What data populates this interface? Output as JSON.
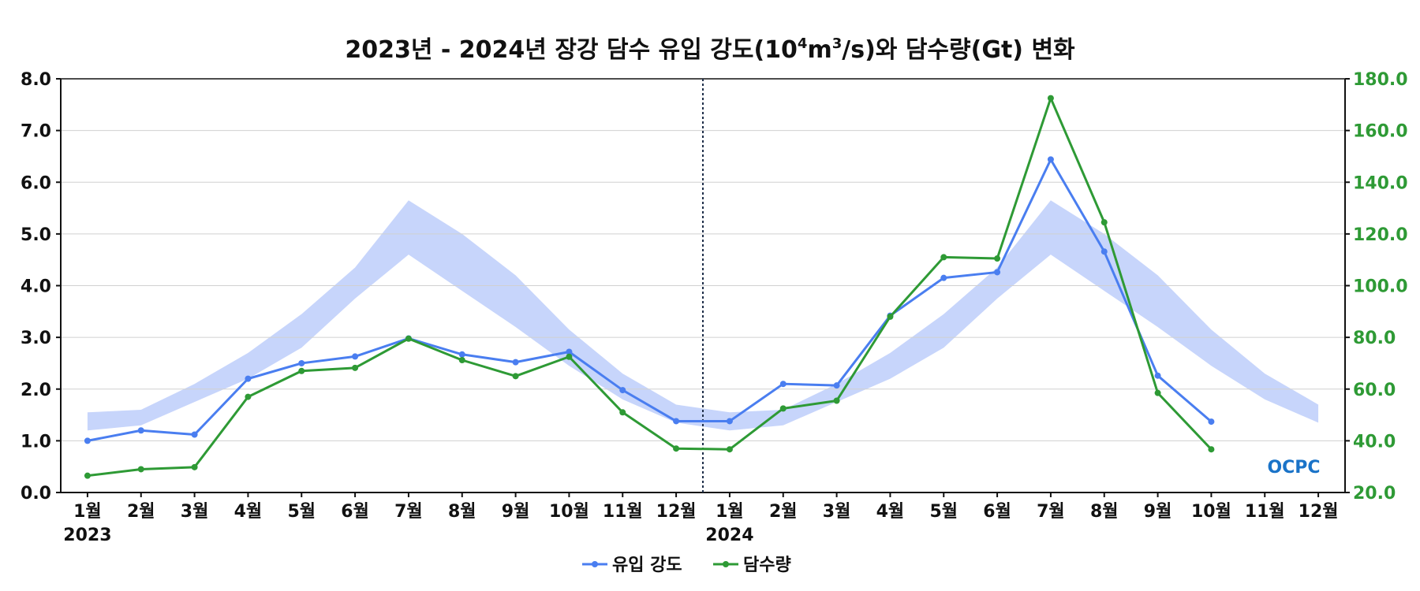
{
  "chart_data": {
    "type": "line",
    "title": "2023년 - 2024년 장강 담수 유입 강도(10⁴m³/s)와 담수량(Gt) 변화",
    "title_parts": {
      "main": "2023년 - 2024년 장강 담수 유입 강도(10",
      "exp1": "4",
      "mid": "m",
      "exp2": "3",
      "end": "/s)와 담수량(Gt) 변화"
    },
    "x_tick_labels": [
      "1월",
      "2월",
      "3월",
      "4월",
      "5월",
      "6월",
      "7월",
      "8월",
      "9월",
      "10월",
      "11월",
      "12월",
      "1월",
      "2월",
      "3월",
      "4월",
      "5월",
      "6월",
      "7월",
      "8월",
      "9월",
      "10월",
      "11월",
      "12월"
    ],
    "year_labels": [
      "2023",
      "2024"
    ],
    "y_left": {
      "min": 0,
      "max": 8,
      "ticks": [
        "0.0",
        "1.0",
        "2.0",
        "3.0",
        "4.0",
        "5.0",
        "6.0",
        "7.0",
        "8.0"
      ]
    },
    "y_right": {
      "min": 20,
      "max": 180,
      "ticks": [
        "20.0",
        "40.0",
        "60.0",
        "80.0",
        "100.0",
        "120.0",
        "140.0",
        "160.0",
        "180.0"
      ]
    },
    "climatology_band": {
      "lower": [
        1.2,
        1.3,
        1.75,
        2.2,
        2.8,
        3.75,
        4.6,
        3.9,
        3.2,
        2.45,
        1.8,
        1.35,
        1.2,
        1.3,
        1.75,
        2.2,
        2.8,
        3.75,
        4.6,
        3.9,
        3.2,
        2.45,
        1.8,
        1.35
      ],
      "upper": [
        1.55,
        1.6,
        2.1,
        2.7,
        3.45,
        4.35,
        5.65,
        5.0,
        4.2,
        3.15,
        2.3,
        1.7,
        1.55,
        1.6,
        2.1,
        2.7,
        3.45,
        4.35,
        5.65,
        5.0,
        4.2,
        3.15,
        2.3,
        1.7
      ]
    },
    "series": [
      {
        "name": "유입 강도",
        "axis": "left",
        "color": "#4a7ef0",
        "values": [
          1.0,
          1.2,
          1.12,
          2.2,
          2.5,
          2.63,
          2.98,
          2.67,
          2.52,
          2.72,
          1.98,
          1.38,
          1.38,
          2.1,
          2.07,
          3.42,
          4.15,
          4.26,
          6.44,
          4.66,
          2.26,
          1.37
        ]
      },
      {
        "name": "담수량",
        "axis": "right",
        "color": "#2e9a35",
        "values": [
          26.5,
          29.0,
          29.8,
          57.0,
          67.0,
          68.2,
          79.5,
          71.2,
          65.0,
          72.5,
          51.0,
          37.0,
          36.7,
          52.5,
          55.5,
          88.0,
          111.0,
          110.5,
          172.5,
          124.5,
          58.5,
          36.7
        ]
      }
    ],
    "divider_between": [
      "12월",
      "1월"
    ],
    "grid": true,
    "legend_position": "bottom-center",
    "colors": {
      "band": "#c7d5fb",
      "divider": "#1f2f4a",
      "right_axis_text": "#2e9a35",
      "grid": "#d0d0d0"
    }
  },
  "logo": {
    "text": "OCPC",
    "color": "#1a73c8"
  }
}
